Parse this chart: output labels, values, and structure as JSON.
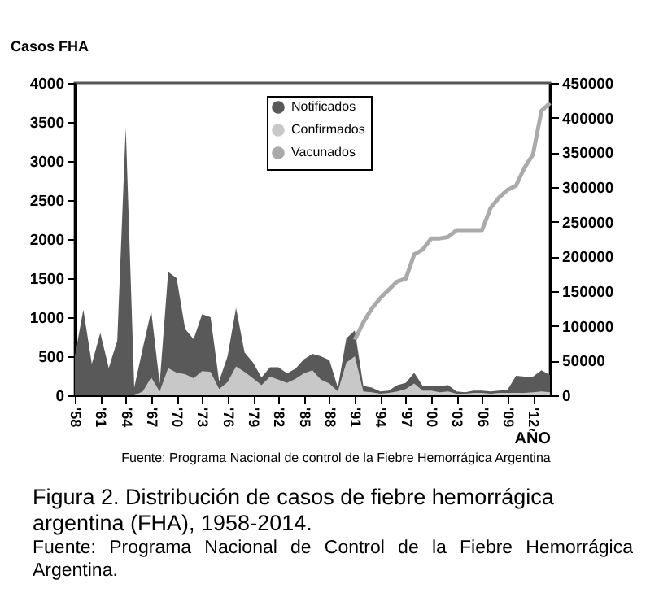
{
  "chart_data": {
    "type": "area",
    "ylabel": "Casos FHA",
    "xlabel": "AÑO",
    "categories": [
      "'58",
      null,
      null,
      "'61",
      null,
      null,
      "'64",
      null,
      null,
      "'67",
      null,
      null,
      "'70",
      null,
      null,
      "'73",
      null,
      null,
      "'76",
      null,
      null,
      "'79",
      null,
      null,
      "'82",
      null,
      null,
      "'85",
      null,
      null,
      "'88",
      null,
      null,
      "'91",
      null,
      null,
      "'94",
      null,
      null,
      "'97",
      null,
      null,
      "'00",
      null,
      null,
      "'03",
      null,
      null,
      "'06",
      null,
      null,
      "'09",
      null,
      null,
      "'12",
      null,
      null
    ],
    "series": [
      {
        "name": "Notificados",
        "color": "#595959",
        "values": [
          500,
          1100,
          400,
          800,
          350,
          700,
          3430,
          100,
          600,
          1080,
          150,
          1580,
          1500,
          850,
          720,
          1040,
          1000,
          180,
          500,
          1120,
          550,
          420,
          230,
          360,
          360,
          280,
          340,
          460,
          530,
          500,
          450,
          100,
          730,
          830,
          120,
          100,
          50,
          60,
          130,
          160,
          290,
          120,
          120,
          120,
          130,
          50,
          40,
          60,
          60,
          50,
          60,
          70,
          250,
          240,
          240,
          320,
          260
        ]
      },
      {
        "name": "Confirmados",
        "color": "#c8c8c8",
        "values": [
          null,
          null,
          null,
          null,
          null,
          null,
          null,
          0,
          50,
          230,
          50,
          350,
          290,
          270,
          220,
          310,
          300,
          80,
          170,
          370,
          300,
          220,
          130,
          240,
          200,
          160,
          210,
          280,
          320,
          200,
          150,
          50,
          420,
          500,
          50,
          40,
          20,
          30,
          50,
          80,
          150,
          60,
          60,
          40,
          50,
          20,
          20,
          30,
          30,
          20,
          30,
          30,
          30,
          30,
          40,
          50,
          40
        ]
      },
      {
        "name": "Vacunados",
        "type": "line",
        "axis": "y2",
        "color": "#aaaaaa",
        "values": [
          null,
          null,
          null,
          null,
          null,
          null,
          null,
          null,
          null,
          null,
          null,
          null,
          null,
          null,
          null,
          null,
          null,
          null,
          null,
          null,
          null,
          null,
          null,
          null,
          null,
          null,
          null,
          null,
          null,
          null,
          null,
          null,
          null,
          80000,
          105000,
          125000,
          140000,
          152000,
          164000,
          168000,
          203000,
          210000,
          226000,
          226000,
          228000,
          238000,
          238000,
          238000,
          238000,
          270000,
          285000,
          296000,
          302000,
          328000,
          347000,
          410000,
          421000
        ]
      }
    ],
    "ylim": [
      0,
      4000
    ],
    "yticks": [
      0,
      500,
      1000,
      1500,
      2000,
      2500,
      3000,
      3500,
      4000
    ],
    "y2lim": [
      0,
      450000
    ],
    "y2ticks": [
      0,
      50000,
      100000,
      150000,
      200000,
      250000,
      300000,
      350000,
      400000,
      450000
    ],
    "legend": "top",
    "annotations": [
      "Fuente: Programa Nacional de control de la Fiebre Hemorrágica Argentina",
      "Figura 2. Distribución de casos de fiebre hemorrágica argentina (FHA), 1958-2014.",
      "Fuente: Programa Nacional de Control de la Fiebre Hemorrágica Argentina."
    ]
  }
}
